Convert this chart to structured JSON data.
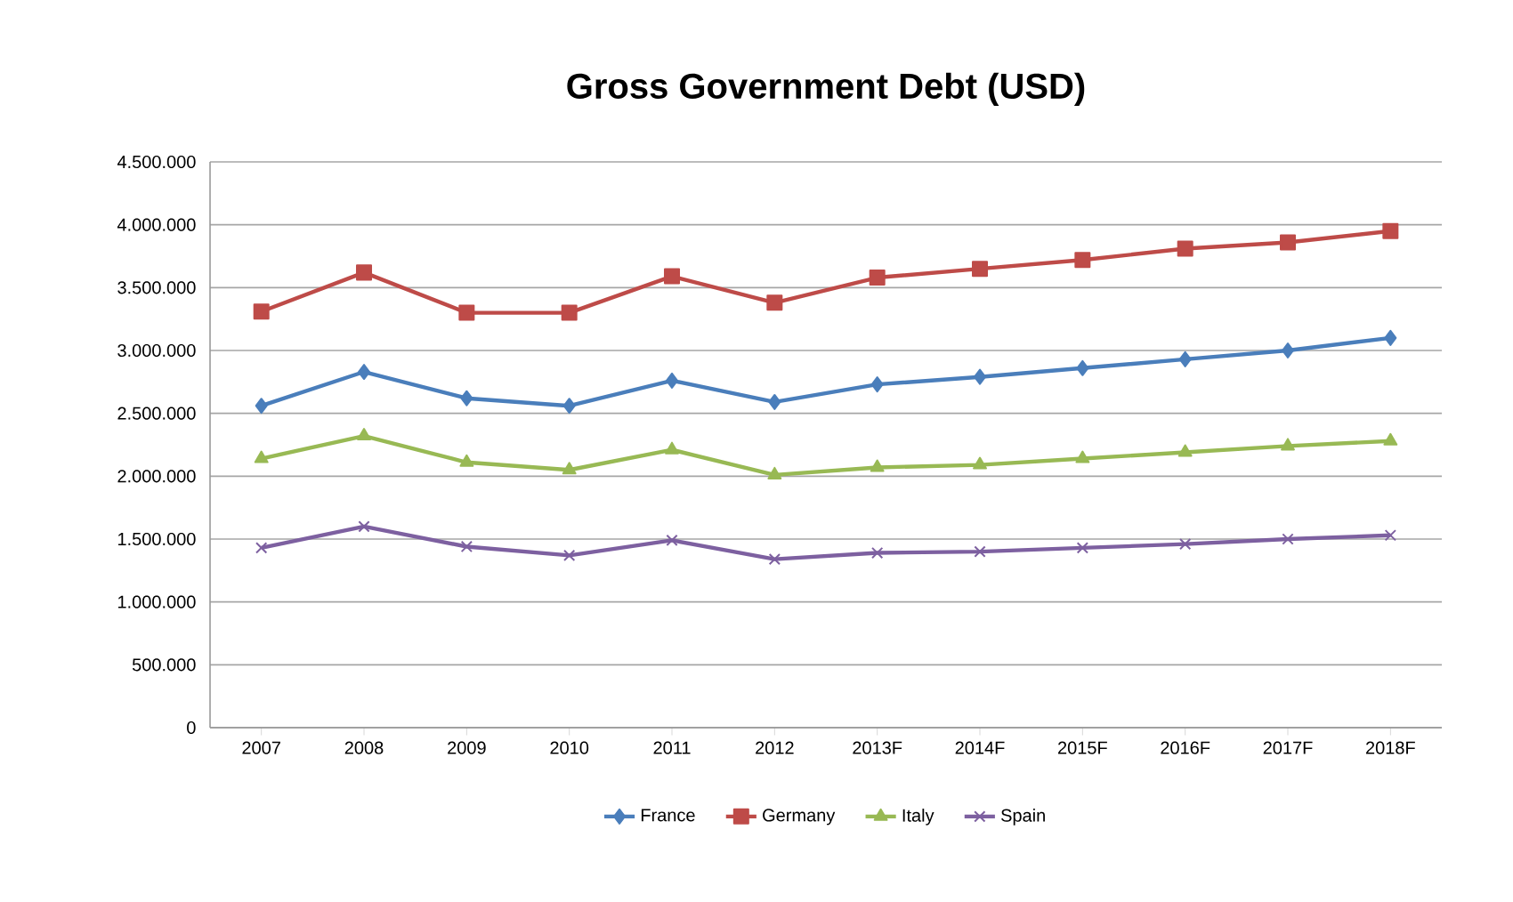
{
  "chart_data": {
    "type": "line",
    "title": "Gross Government Debt (USD)",
    "categories": [
      "2007",
      "2008",
      "2009",
      "2010",
      "2011",
      "2012",
      "2013F",
      "2014F",
      "2015F",
      "2016F",
      "2017F",
      "2018F"
    ],
    "series": [
      {
        "name": "France",
        "color": "#4a7ebb",
        "marker": "diamond",
        "values": [
          2560000,
          2830000,
          2620000,
          2560000,
          2760000,
          2590000,
          2730000,
          2790000,
          2860000,
          2930000,
          3000000,
          3100000
        ]
      },
      {
        "name": "Germany",
        "color": "#be4b48",
        "marker": "square",
        "values": [
          3310000,
          3620000,
          3300000,
          3300000,
          3590000,
          3380000,
          3580000,
          3650000,
          3720000,
          3810000,
          3860000,
          3950000
        ]
      },
      {
        "name": "Italy",
        "color": "#98b954",
        "marker": "triangle",
        "values": [
          2140000,
          2320000,
          2110000,
          2050000,
          2210000,
          2010000,
          2070000,
          2090000,
          2140000,
          2190000,
          2240000,
          2280000
        ]
      },
      {
        "name": "Spain",
        "color": "#7d60a0",
        "marker": "cross",
        "values": [
          1430000,
          1600000,
          1440000,
          1370000,
          1490000,
          1340000,
          1390000,
          1400000,
          1430000,
          1460000,
          1500000,
          1530000
        ]
      }
    ],
    "ylim": [
      0,
      4500000
    ],
    "yticks": [
      {
        "value": 0,
        "label": "0"
      },
      {
        "value": 500000,
        "label": "500.000"
      },
      {
        "value": 1000000,
        "label": "1.000.000"
      },
      {
        "value": 1500000,
        "label": "1.500.000"
      },
      {
        "value": 2000000,
        "label": "2.000.000"
      },
      {
        "value": 2500000,
        "label": "2.500.000"
      },
      {
        "value": 3000000,
        "label": "3.000.000"
      },
      {
        "value": 3500000,
        "label": "3.500.000"
      },
      {
        "value": 4000000,
        "label": "4.000.000"
      },
      {
        "value": 4500000,
        "label": "4.500.000"
      }
    ],
    "grid": "y",
    "legend": "bottom",
    "line_style": "solid"
  }
}
